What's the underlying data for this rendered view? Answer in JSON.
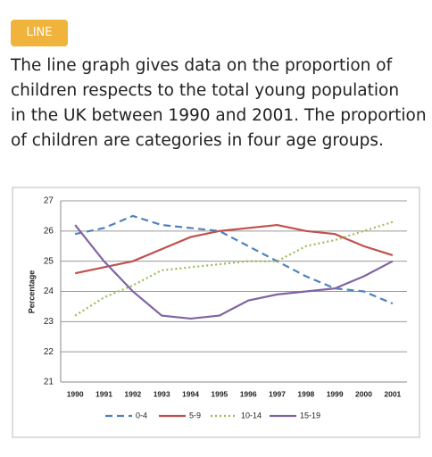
{
  "tag": "LINE",
  "description_lines": [
    "The line graph gives data on the proportion of",
    "children respects to the total young population",
    "in the UK between 1990 and 2001. The proportion",
    "of children are categories in four age groups."
  ],
  "chart_data": {
    "type": "line",
    "y_label": "Percentage",
    "categories": [
      "1990",
      "1991",
      "1992",
      "1993",
      "1994",
      "1995",
      "1996",
      "1997",
      "1998",
      "1999",
      "2000",
      "2001"
    ],
    "series": [
      {
        "name": "0-4",
        "color": "#4f81bd",
        "style": "dashed",
        "values": [
          25.9,
          26.1,
          26.5,
          26.2,
          26.1,
          26.0,
          25.5,
          25.0,
          24.5,
          24.1,
          24.0,
          23.6
        ]
      },
      {
        "name": "5-9",
        "color": "#c0504d",
        "style": "solid",
        "values": [
          24.6,
          24.8,
          25.0,
          25.4,
          25.8,
          26.0,
          26.1,
          26.2,
          26.0,
          25.9,
          25.5,
          25.2
        ]
      },
      {
        "name": "10-14",
        "color": "#9bbb59",
        "style": "dotted",
        "values": [
          23.2,
          23.8,
          24.2,
          24.7,
          24.8,
          24.9,
          25.0,
          25.0,
          25.5,
          25.7,
          26.0,
          26.3
        ]
      },
      {
        "name": "15-19",
        "color": "#8064a2",
        "style": "solid",
        "values": [
          26.2,
          25.0,
          24.0,
          23.2,
          23.1,
          23.2,
          23.7,
          23.9,
          24.0,
          24.1,
          24.5,
          25.0
        ]
      }
    ],
    "ylim": [
      21,
      27
    ],
    "yticks": [
      21,
      22,
      23,
      24,
      25,
      26,
      27
    ],
    "grid": true,
    "legend": "bottom"
  }
}
